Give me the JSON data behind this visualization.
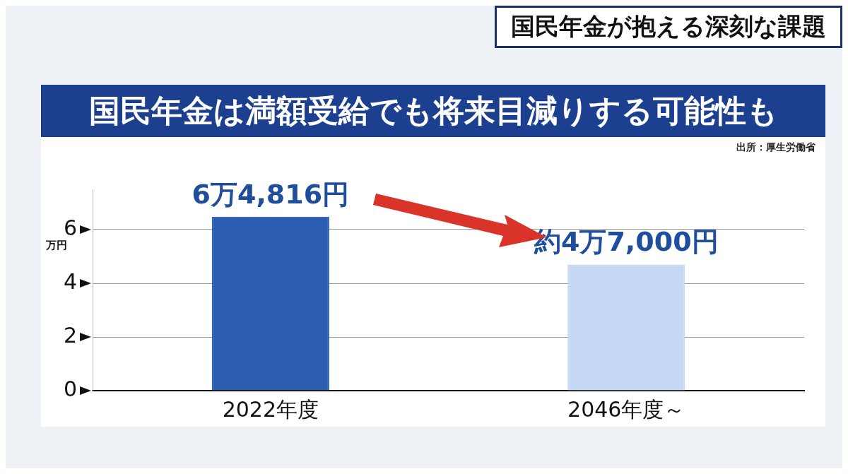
{
  "chart_data": {
    "type": "bar",
    "title": "国民年金は満額受給でも将来目減りする可能性も",
    "subtitle": "国民年金が抱える深刻な課題",
    "ylabel": "万円",
    "annotations": [
      "出所：厚生労働省"
    ],
    "categories": [
      "2022年度",
      "2046年度～"
    ],
    "values": [
      6.4816,
      4.7
    ],
    "colors": [
      "#2a5db0",
      "#c5d9f5"
    ],
    "value_labels": [
      "6万4,816円",
      "約4万7,000円"
    ],
    "ylim": [
      0,
      7.5
    ],
    "yticks": [
      0,
      2,
      4,
      6
    ],
    "grid": "y",
    "legend": false
  }
}
